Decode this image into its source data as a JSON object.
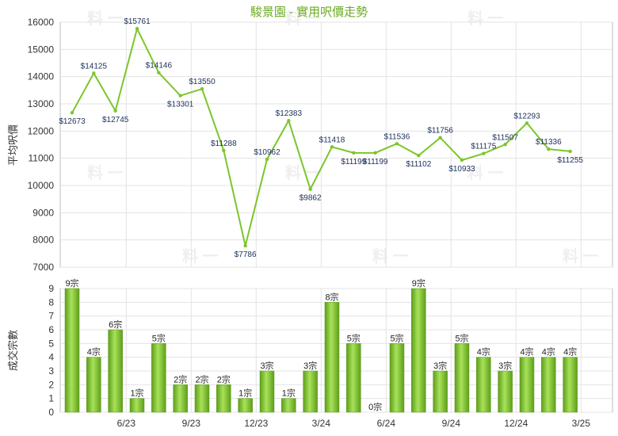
{
  "chart_data": [
    {
      "type": "line",
      "title": "駿景園 - 實用呎價走勢",
      "ylabel": "平均呎價",
      "ylim": [
        7000,
        16000
      ],
      "yticks": [
        "7000",
        "8000",
        "9000",
        "10000",
        "11000",
        "12000",
        "13000",
        "14000",
        "15000",
        "16000"
      ],
      "grid": true,
      "series": [
        {
          "values": [
            12673,
            14125,
            12745,
            15761,
            14146,
            13301,
            13550,
            11288,
            7786,
            10962,
            12383,
            9862,
            11418,
            11199,
            11199,
            11536,
            11102,
            11756,
            10933,
            11175,
            11507,
            12293,
            11336,
            11255
          ],
          "labels": [
            "$12673",
            "$14125",
            "$12745",
            "$15761",
            "$14146",
            "$13301",
            "$13550",
            "$11288",
            "$7786",
            "$10962",
            "$12383",
            "$9862",
            "$11418",
            "$11199",
            "$11199",
            "$11536",
            "$11102",
            "$11756",
            "$10933",
            "$11175",
            "$11507",
            "$12293",
            "$11336",
            "$11255"
          ]
        }
      ],
      "color": "#7bc62a"
    },
    {
      "type": "bar",
      "ylabel": "成交宗數",
      "ylim": [
        0,
        9
      ],
      "yticks": [
        "0",
        "1",
        "2",
        "3",
        "4",
        "5",
        "6",
        "7",
        "8",
        "9"
      ],
      "grid": true,
      "categories": [
        "6/23",
        "9/23",
        "12/23",
        "3/24",
        "6/24",
        "9/24",
        "12/24",
        "3/25"
      ],
      "values": [
        9,
        4,
        6,
        1,
        5,
        2,
        2,
        2,
        1,
        3,
        1,
        3,
        8,
        5,
        0,
        5,
        9,
        3,
        5,
        4,
        3,
        4,
        4,
        4
      ],
      "labels": [
        "9宗",
        "4宗",
        "6宗",
        "1宗",
        "5宗",
        "2宗",
        "2宗",
        "2宗",
        "1宗",
        "3宗",
        "1宗",
        "3宗",
        "8宗",
        "5宗",
        "0宗",
        "5宗",
        "9宗",
        "3宗",
        "5宗",
        "4宗",
        "3宗",
        "4宗",
        "4宗",
        "4宗"
      ],
      "color": "#7bc62a"
    }
  ]
}
